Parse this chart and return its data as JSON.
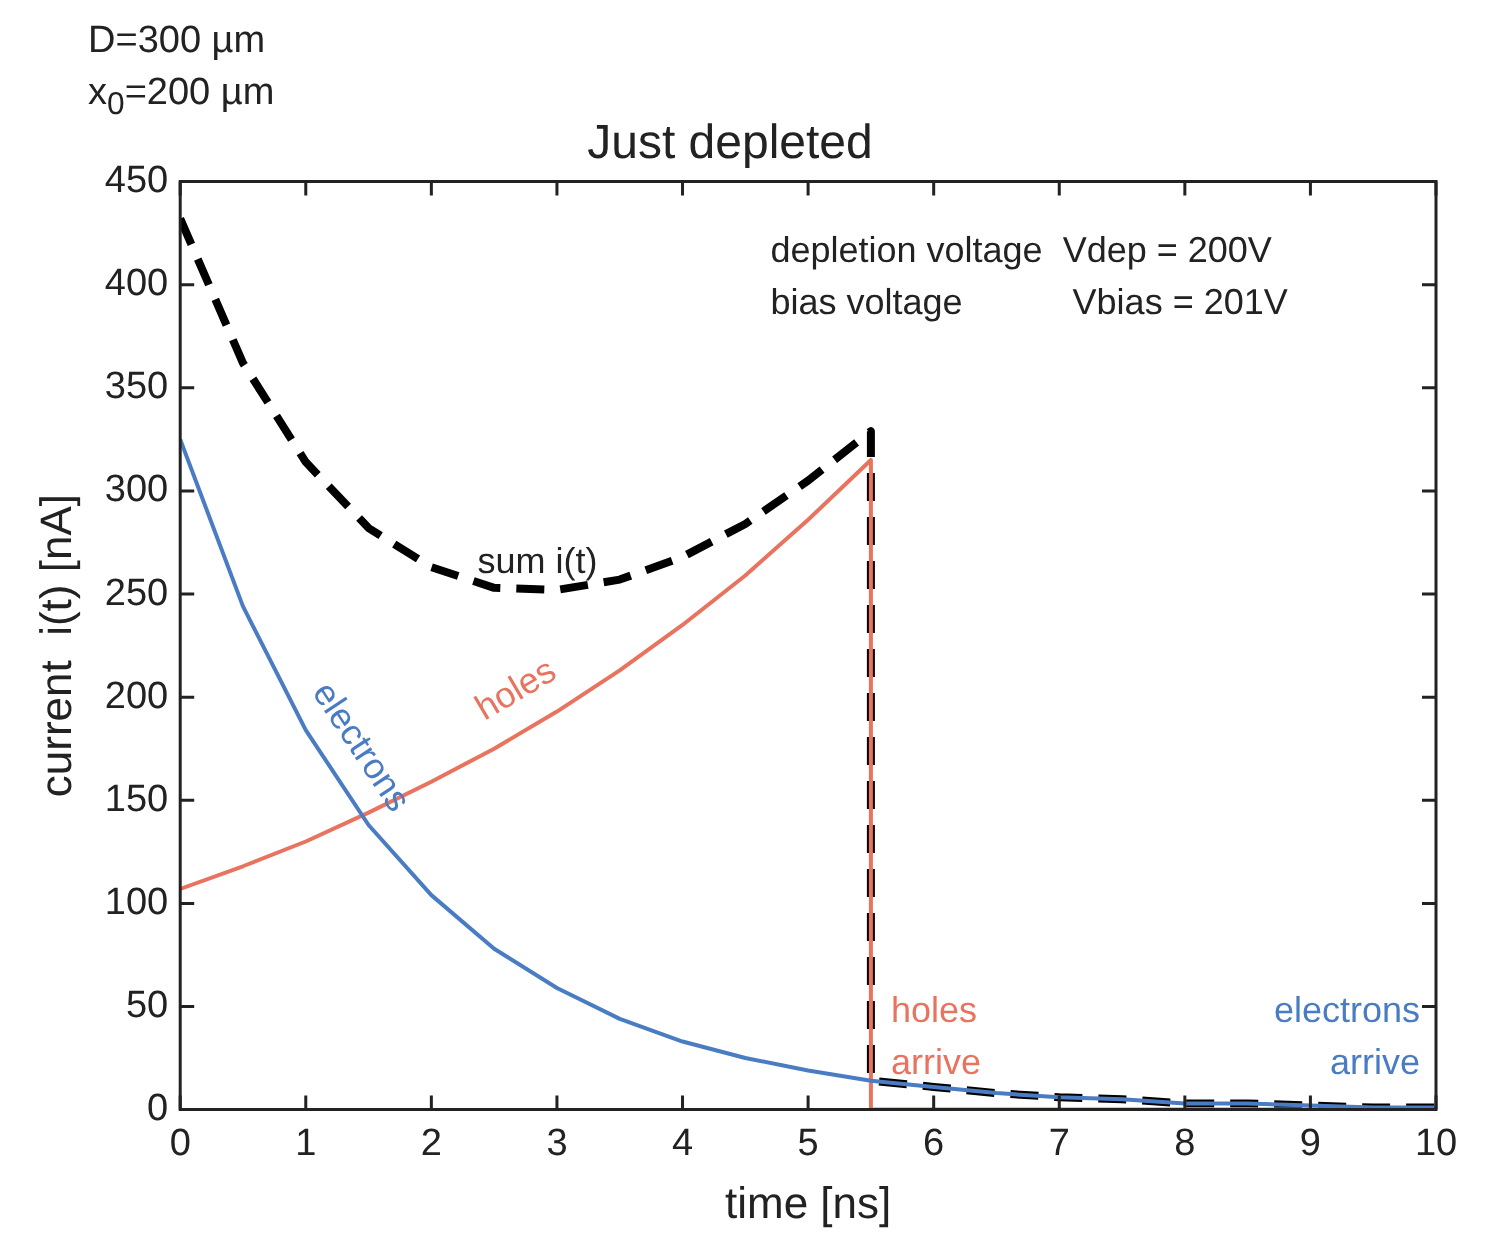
{
  "chart_data": {
    "type": "line",
    "title": "Just depleted",
    "xlabel": "time [ns]",
    "ylabel": "current  i(t) [nA]",
    "xlim": [
      0,
      10
    ],
    "xticks": [
      0,
      1,
      2,
      3,
      4,
      5,
      6,
      7,
      8,
      9,
      10
    ],
    "ylim": [
      0,
      450
    ],
    "yticks": [
      0,
      50,
      100,
      150,
      200,
      250,
      300,
      350,
      400,
      450
    ],
    "grid": false,
    "legend": false,
    "marker": "none",
    "series": [
      {
        "name": "electrons",
        "color": "#4a7cc4",
        "line_style": "solid",
        "x": [
          0,
          0.5,
          1,
          1.5,
          2,
          2.5,
          3,
          3.5,
          4,
          4.5,
          5,
          5.5,
          6,
          6.5,
          7,
          7.5,
          8,
          8.5,
          9,
          9.5,
          10
        ],
        "values": [
          325,
          244,
          184,
          138,
          104,
          78,
          59,
          44,
          33,
          25,
          19,
          14,
          11,
          8,
          6,
          5,
          3,
          3,
          2,
          1,
          1
        ]
      },
      {
        "name": "holes",
        "color": "#e8735f",
        "line_style": "solid",
        "x": [
          0,
          0.5,
          1,
          1.5,
          2,
          2.5,
          3,
          3.5,
          4,
          4.5,
          5,
          5.5,
          5.5,
          10
        ],
        "values": [
          107,
          118,
          130,
          144,
          159,
          175,
          193,
          213,
          235,
          259,
          286,
          315,
          0,
          0
        ]
      },
      {
        "name": "sum i(t)",
        "color": "#000000",
        "line_style": "dashed",
        "x": [
          0,
          0.5,
          1,
          1.5,
          2,
          2.5,
          3,
          3.5,
          4,
          4.5,
          5,
          5.5,
          5.5,
          6,
          6.5,
          7,
          7.5,
          8,
          8.5,
          9,
          9.5,
          10
        ],
        "values": [
          432,
          362,
          314,
          282,
          263,
          253,
          252,
          257,
          268,
          284,
          305,
          329,
          14,
          11,
          8,
          6,
          5,
          3,
          3,
          2,
          1,
          1
        ]
      }
    ],
    "annotations": [
      "D=300 µm",
      "x$_{0}$=200 µm",
      "depletion voltage  Vdep = 200V",
      "bias voltage           Vbias = 201V",
      {
        "text": "holes arrive",
        "x": 5.5,
        "y": 0
      },
      {
        "text": "electrons arrive",
        "x": 10,
        "y": 0
      }
    ]
  }
}
